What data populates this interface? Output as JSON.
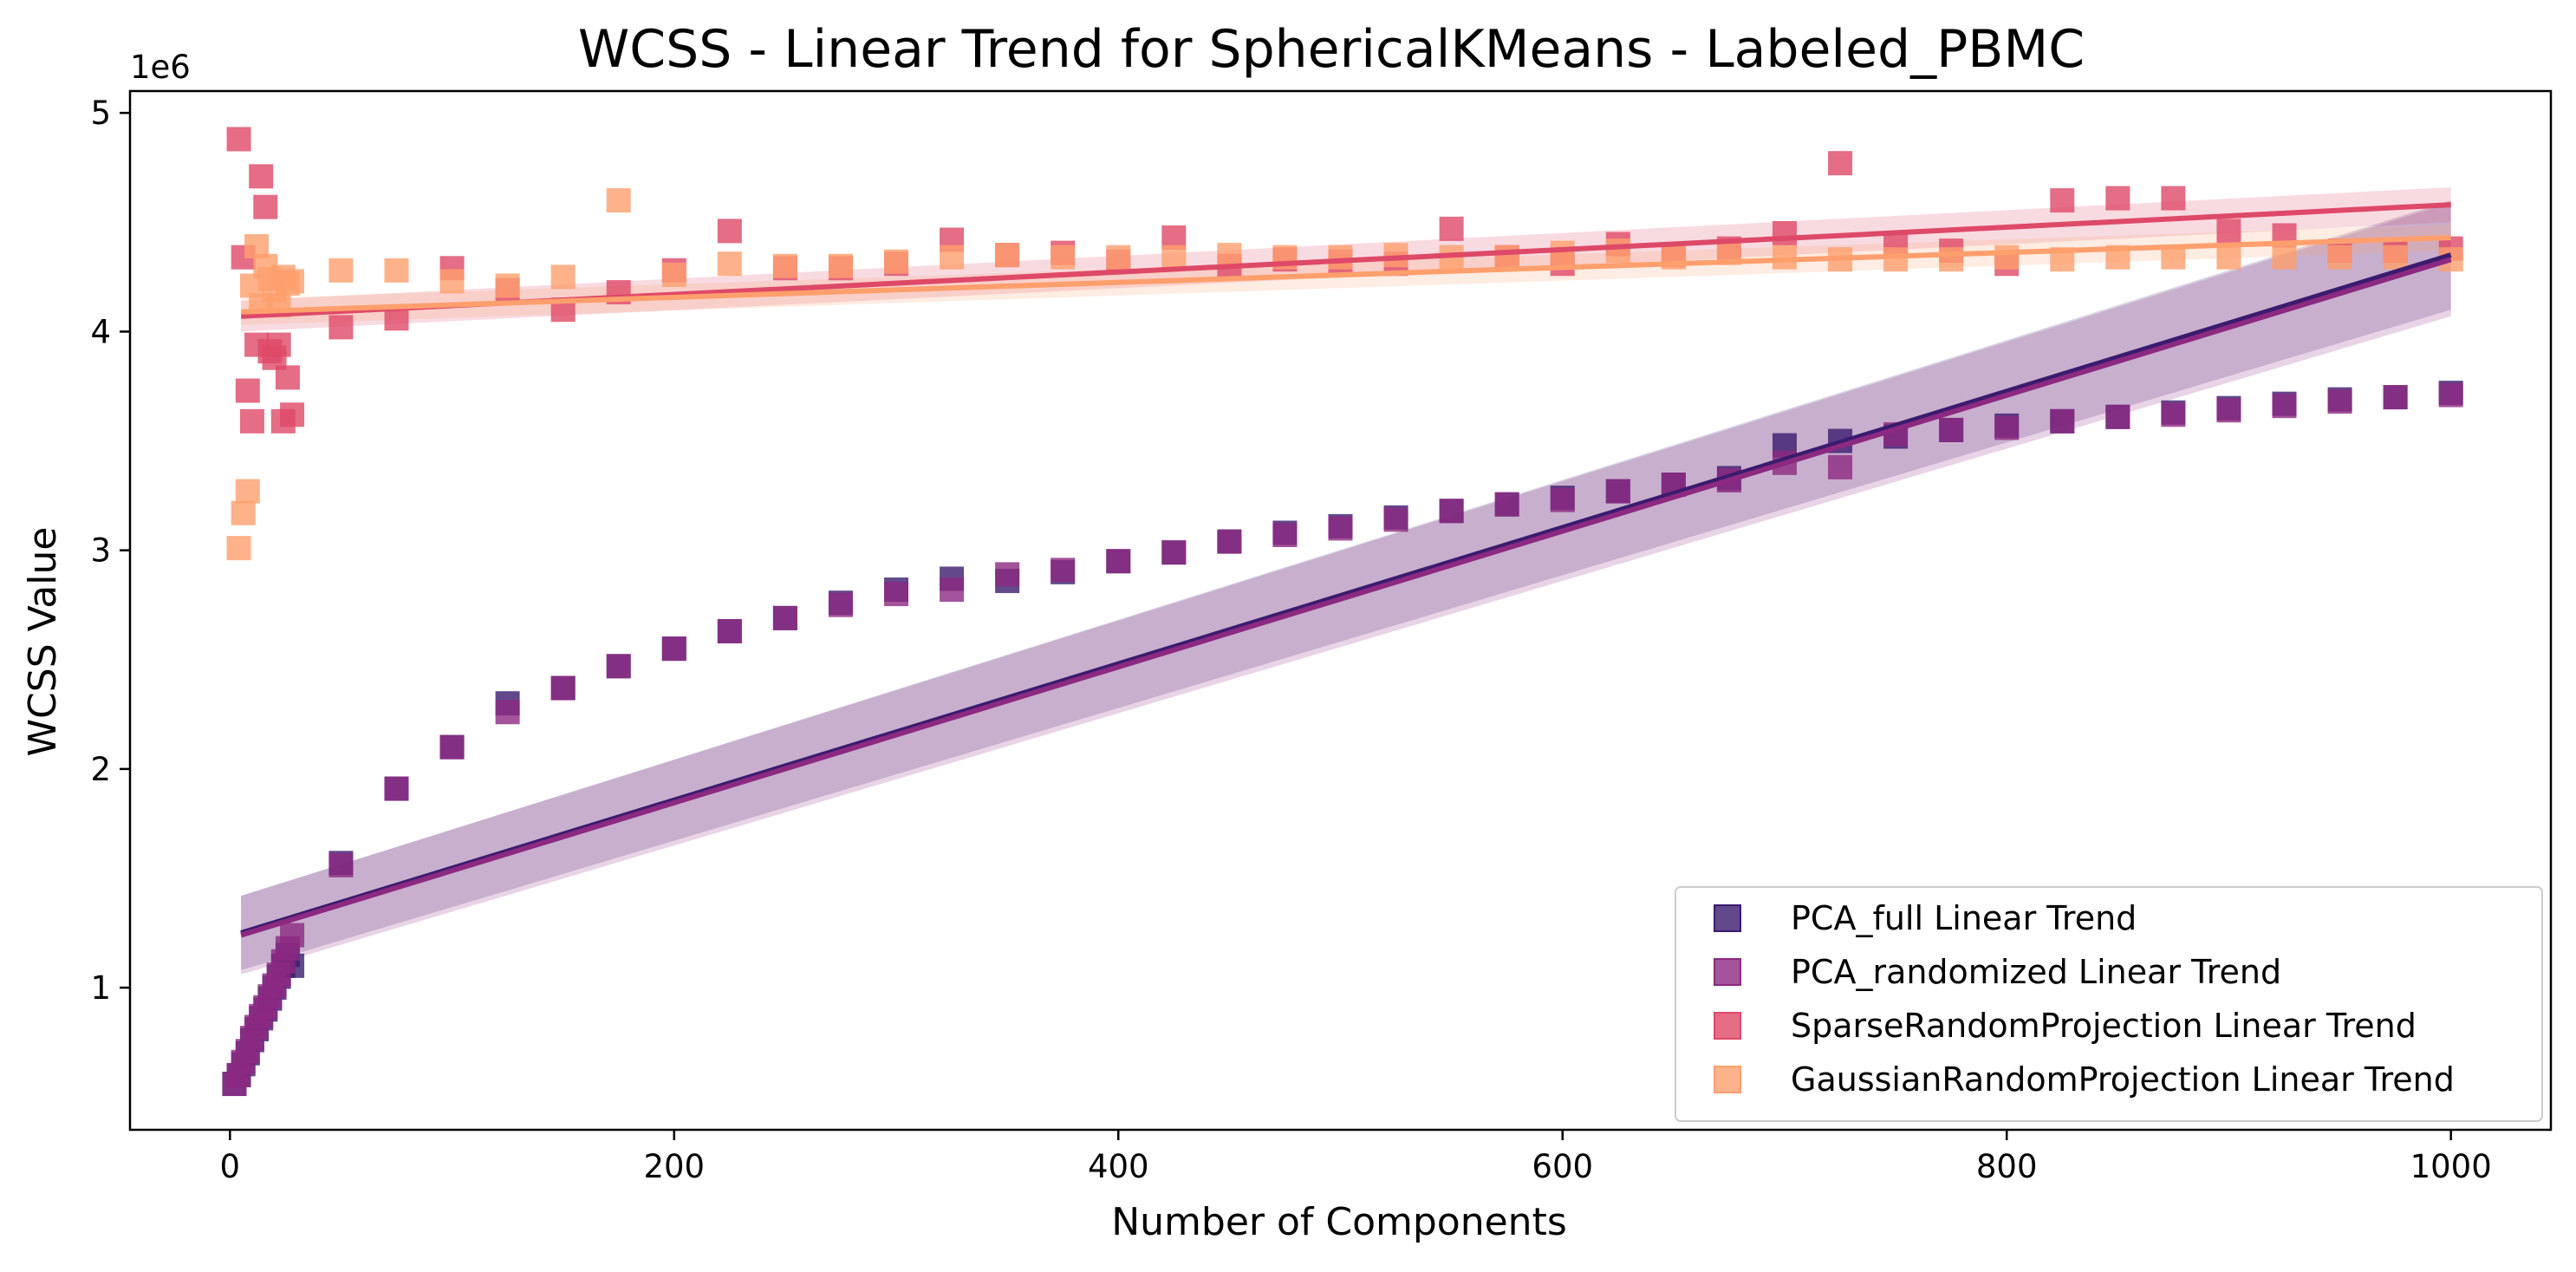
{
  "chart_data": {
    "type": "scatter",
    "title": "WCSS - Linear Trend for SphericalKMeans - Labeled_PBMC",
    "xlabel": "Number of Components",
    "ylabel": "WCSS Value",
    "y_offset_label": "1e6",
    "xlim": [
      -45,
      1045
    ],
    "ylim": [
      350000,
      5100000
    ],
    "x_ticks": [
      0,
      200,
      400,
      600,
      800,
      1000
    ],
    "x_tick_labels": [
      "0",
      "200",
      "400",
      "600",
      "800",
      "1000"
    ],
    "y_ticks": [
      1000000,
      2000000,
      3000000,
      4000000,
      5000000
    ],
    "y_tick_labels": [
      "1",
      "2",
      "3",
      "4",
      "5"
    ],
    "grid": false,
    "legend_position": "lower-right",
    "marker": "square",
    "series": [
      {
        "name": "PCA_full Linear Trend",
        "color": "#3b1b6e",
        "x": [
          2,
          4,
          6,
          8,
          10,
          12,
          14,
          16,
          18,
          20,
          22,
          24,
          26,
          28,
          50,
          75,
          100,
          125,
          150,
          175,
          200,
          225,
          250,
          275,
          300,
          325,
          350,
          375,
          400,
          425,
          450,
          475,
          500,
          525,
          550,
          575,
          600,
          625,
          650,
          675,
          700,
          725,
          750,
          775,
          800,
          825,
          850,
          875,
          900,
          925,
          950,
          975,
          1000
        ],
        "y": [
          560000,
          600000,
          650000,
          700000,
          760000,
          810000,
          860000,
          900000,
          950000,
          1000000,
          1050000,
          1100000,
          1150000,
          1100000,
          1570000,
          1910000,
          2100000,
          2300000,
          2370000,
          2470000,
          2550000,
          2630000,
          2690000,
          2760000,
          2820000,
          2870000,
          2860000,
          2900000,
          2950000,
          2990000,
          3040000,
          3080000,
          3110000,
          3150000,
          3180000,
          3210000,
          3240000,
          3270000,
          3300000,
          3330000,
          3480000,
          3500000,
          3520000,
          3550000,
          3570000,
          3590000,
          3610000,
          3630000,
          3650000,
          3670000,
          3690000,
          3700000,
          3720000
        ],
        "trend": {
          "x": [
            5,
            1000
          ],
          "y": [
            1250000,
            4350000
          ]
        },
        "ci_halfwidth": [
          170000,
          250000
        ]
      },
      {
        "name": "PCA_randomized Linear Trend",
        "color": "#8c2981",
        "x": [
          2,
          4,
          6,
          8,
          10,
          12,
          14,
          16,
          18,
          20,
          22,
          24,
          26,
          28,
          50,
          75,
          100,
          125,
          150,
          175,
          200,
          225,
          250,
          275,
          300,
          325,
          350,
          375,
          400,
          425,
          450,
          475,
          500,
          525,
          550,
          575,
          600,
          625,
          650,
          675,
          700,
          725,
          750,
          775,
          800,
          825,
          850,
          875,
          900,
          925,
          950,
          975,
          1000
        ],
        "y": [
          560000,
          600000,
          660000,
          710000,
          770000,
          820000,
          870000,
          910000,
          960000,
          1010000,
          1060000,
          1120000,
          1180000,
          1240000,
          1560000,
          1910000,
          2100000,
          2260000,
          2370000,
          2470000,
          2550000,
          2630000,
          2690000,
          2750000,
          2800000,
          2820000,
          2890000,
          2910000,
          2950000,
          2990000,
          3040000,
          3070000,
          3100000,
          3140000,
          3180000,
          3210000,
          3230000,
          3270000,
          3300000,
          3320000,
          3400000,
          3380000,
          3530000,
          3550000,
          3560000,
          3590000,
          3610000,
          3620000,
          3640000,
          3660000,
          3680000,
          3700000,
          3710000
        ],
        "trend": {
          "x": [
            5,
            1000
          ],
          "y": [
            1240000,
            4330000
          ]
        },
        "ci_halfwidth": [
          180000,
          260000
        ]
      },
      {
        "name": "SparseRandomProjection Linear Trend",
        "color": "#de4968",
        "x": [
          4,
          6,
          8,
          10,
          12,
          14,
          16,
          18,
          20,
          22,
          24,
          26,
          28,
          50,
          75,
          100,
          125,
          150,
          175,
          200,
          225,
          250,
          275,
          300,
          325,
          350,
          375,
          400,
          425,
          450,
          475,
          500,
          525,
          550,
          575,
          600,
          625,
          650,
          675,
          700,
          725,
          750,
          775,
          800,
          825,
          850,
          875,
          900,
          925,
          950,
          975,
          1000
        ],
        "y": [
          4880000,
          4340000,
          3730000,
          3590000,
          3940000,
          4710000,
          4570000,
          3910000,
          3880000,
          3940000,
          3590000,
          3790000,
          3620000,
          4020000,
          4060000,
          4290000,
          4190000,
          4100000,
          4180000,
          4280000,
          4460000,
          4290000,
          4290000,
          4310000,
          4420000,
          4350000,
          4360000,
          4320000,
          4430000,
          4300000,
          4330000,
          4320000,
          4310000,
          4470000,
          4340000,
          4310000,
          4400000,
          4350000,
          4380000,
          4450000,
          4770000,
          4390000,
          4370000,
          4310000,
          4600000,
          4610000,
          4610000,
          4460000,
          4440000,
          4370000,
          4370000,
          4380000
        ],
        "trend": {
          "x": [
            5,
            1000
          ],
          "y": [
            4070000,
            4580000
          ]
        },
        "ci_halfwidth": [
          70000,
          80000
        ]
      },
      {
        "name": "GaussianRandomProjection Linear Trend",
        "color": "#fe9f6d",
        "x": [
          4,
          6,
          8,
          10,
          12,
          14,
          16,
          18,
          20,
          22,
          24,
          26,
          28,
          50,
          75,
          100,
          125,
          150,
          175,
          200,
          225,
          250,
          275,
          300,
          325,
          350,
          375,
          400,
          425,
          450,
          475,
          500,
          525,
          550,
          575,
          600,
          625,
          650,
          675,
          700,
          725,
          750,
          775,
          800,
          825,
          850,
          875,
          900,
          925,
          950,
          975,
          1000
        ],
        "y": [
          3010000,
          3170000,
          3270000,
          4210000,
          4390000,
          4120000,
          4300000,
          4240000,
          4190000,
          4120000,
          4250000,
          4220000,
          4230000,
          4280000,
          4280000,
          4230000,
          4210000,
          4250000,
          4600000,
          4260000,
          4310000,
          4300000,
          4300000,
          4320000,
          4340000,
          4350000,
          4340000,
          4340000,
          4340000,
          4350000,
          4340000,
          4340000,
          4350000,
          4340000,
          4340000,
          4360000,
          4370000,
          4340000,
          4360000,
          4340000,
          4330000,
          4330000,
          4330000,
          4340000,
          4330000,
          4340000,
          4340000,
          4340000,
          4340000,
          4340000,
          4340000,
          4330000
        ],
        "trend": {
          "x": [
            5,
            1000
          ],
          "y": [
            4090000,
            4430000
          ]
        },
        "ci_halfwidth": [
          60000,
          60000
        ]
      }
    ]
  }
}
